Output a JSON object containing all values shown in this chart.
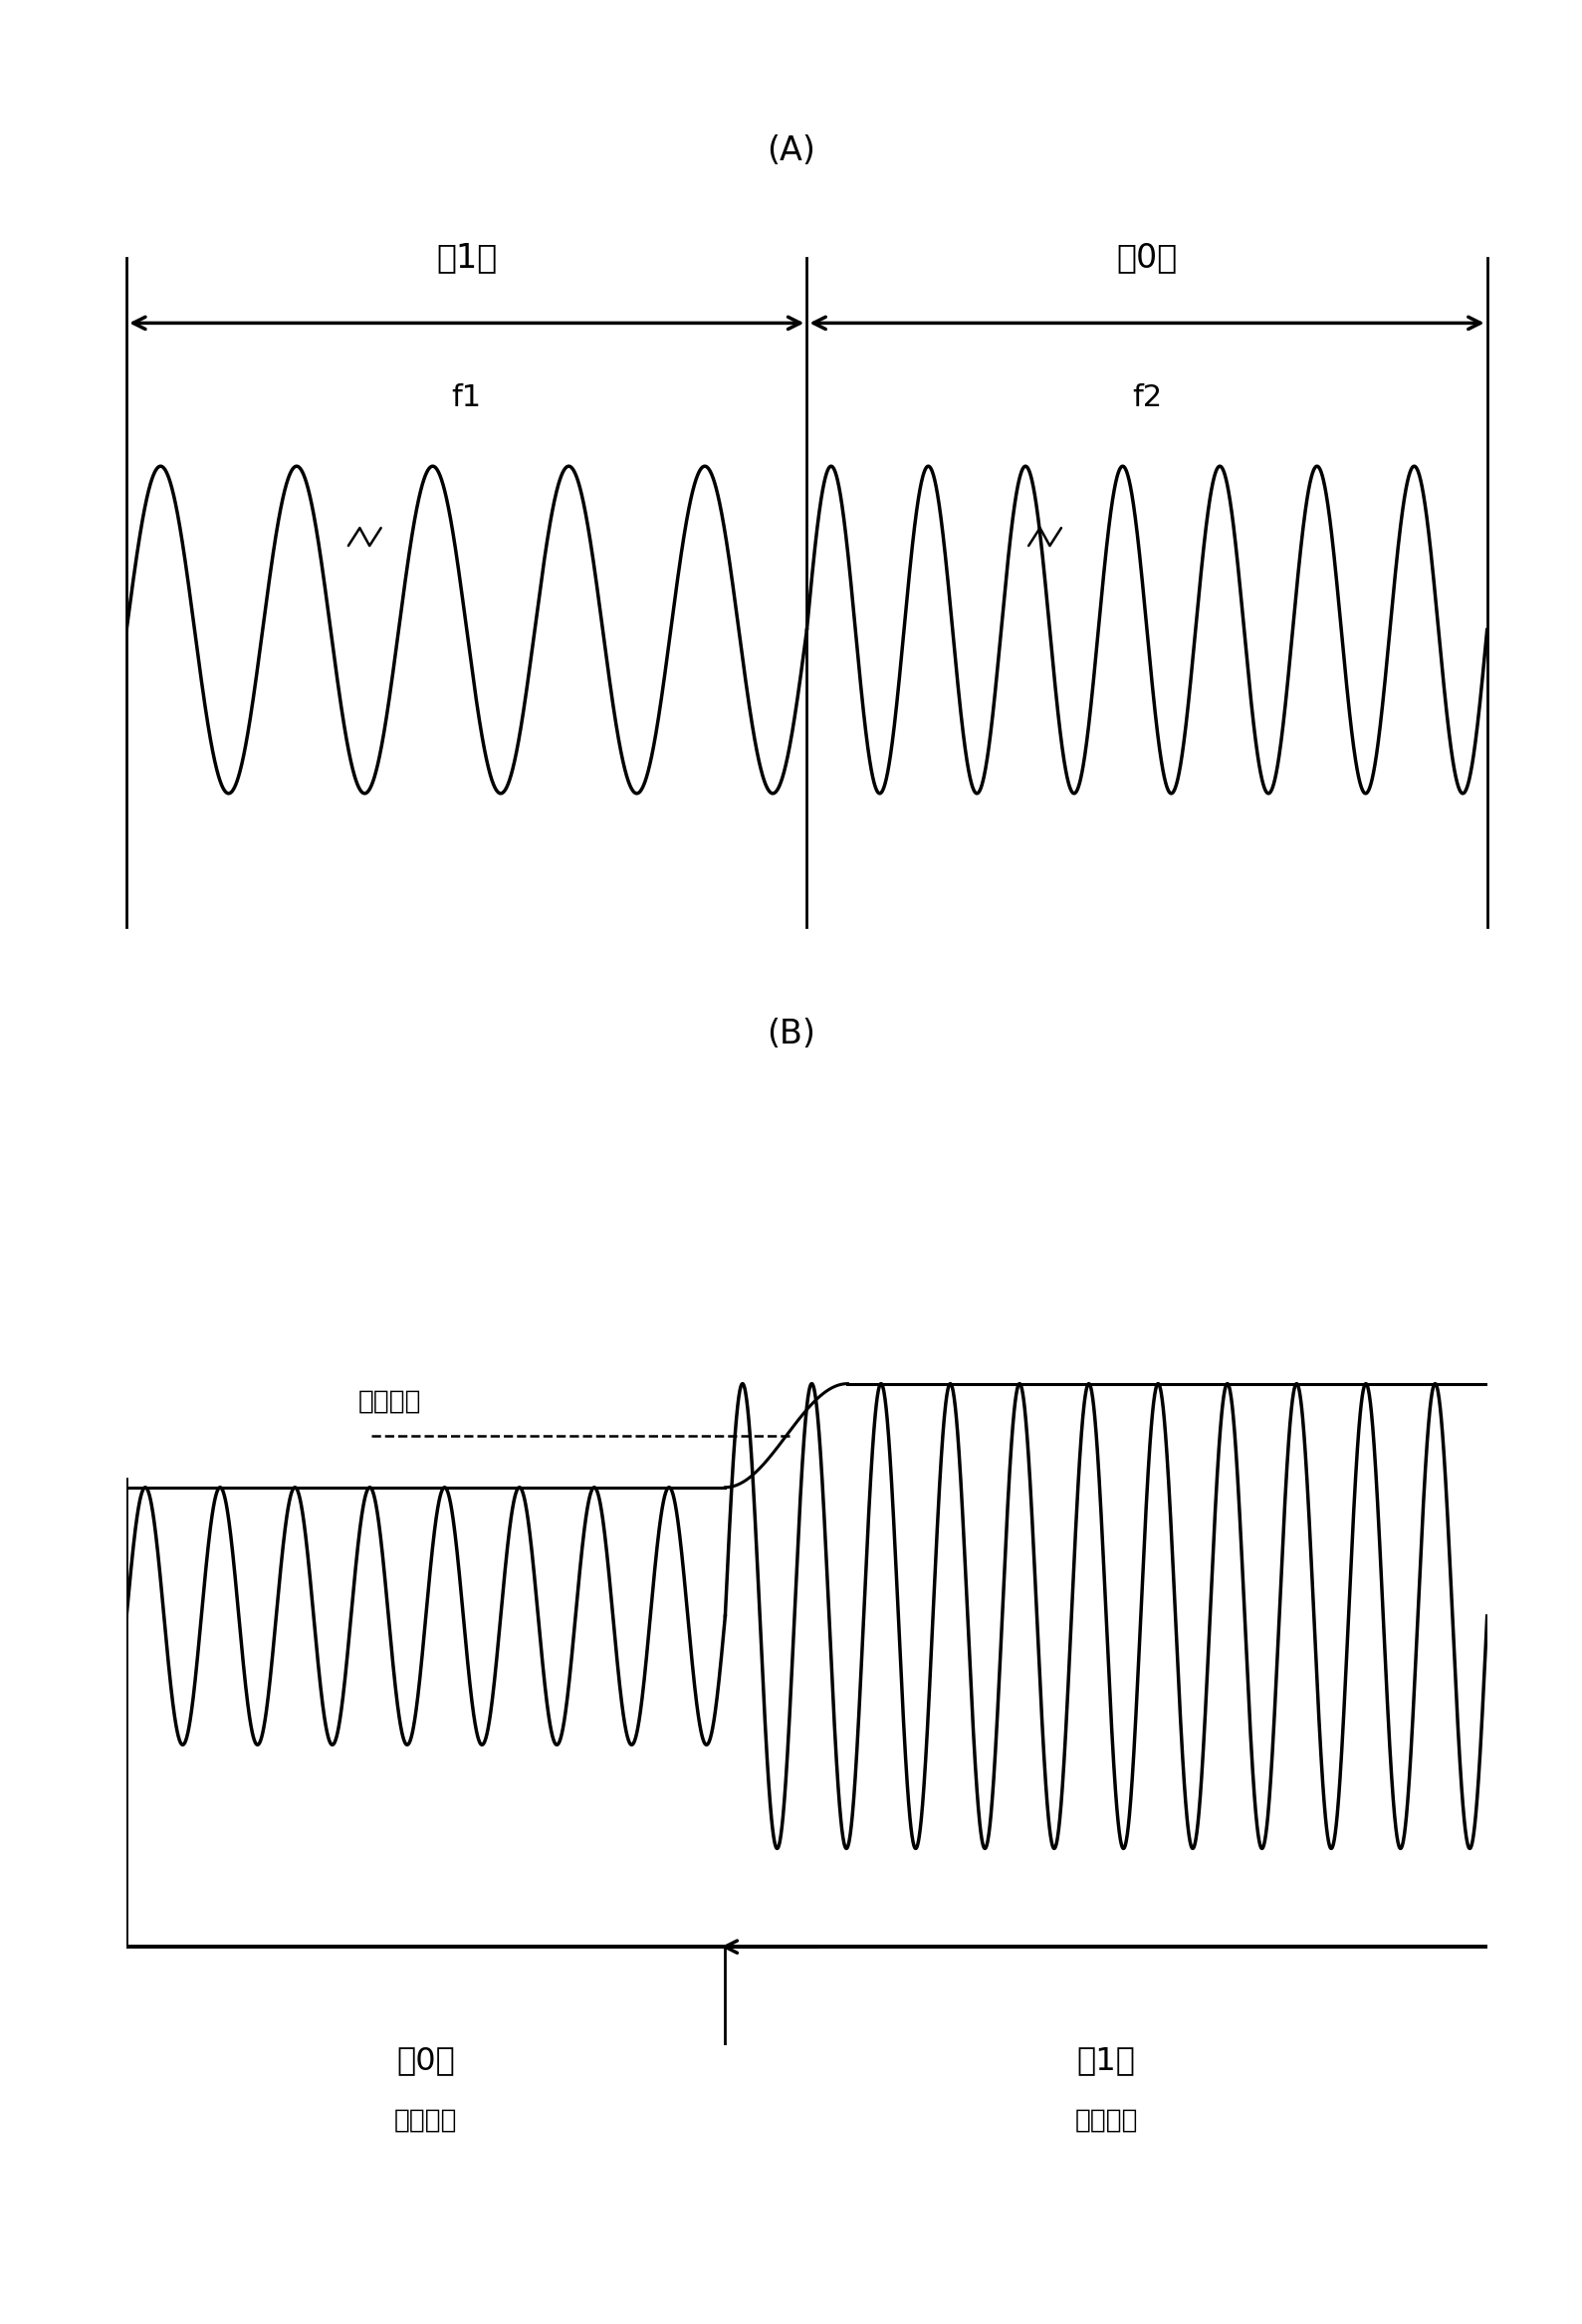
{
  "fig_width": 15.89,
  "fig_height": 23.34,
  "bg_color": "#ffffff",
  "line_color": "#000000",
  "panel_A_label": "(A)",
  "panel_B_label": "(B)",
  "label_1": "「1」",
  "label_0": "「0」",
  "label_f1": "f1",
  "label_f2": "f2",
  "label_thresh": "阈値电压",
  "label_0_low": "「0」",
  "label_1_high": "「1」",
  "label_low_load": "低负载时",
  "label_high_load": "高负载时",
  "A_freq1": 5,
  "A_freq2": 7,
  "B_freq_low": 8,
  "B_freq_high": 11
}
